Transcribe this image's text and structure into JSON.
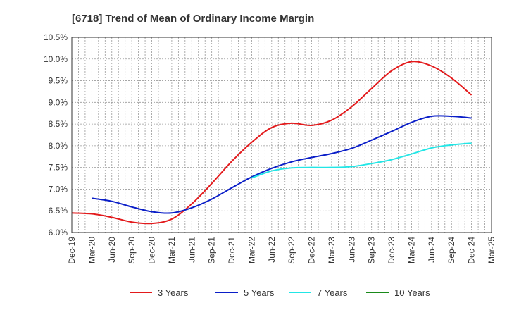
{
  "chart_data": {
    "type": "line",
    "title": "[6718]  Trend of Mean of Ordinary Income Margin",
    "xlabel": "",
    "ylabel": "",
    "x": [
      "Dec-19",
      "Mar-20",
      "Jun-20",
      "Sep-20",
      "Dec-20",
      "Mar-21",
      "Jun-21",
      "Sep-21",
      "Dec-21",
      "Mar-22",
      "Jun-22",
      "Sep-22",
      "Dec-22",
      "Mar-23",
      "Jun-23",
      "Sep-23",
      "Dec-23",
      "Mar-24",
      "Jun-24",
      "Sep-24",
      "Dec-24",
      "Mar-25"
    ],
    "yticks": [
      "6.0%",
      "6.5%",
      "7.0%",
      "7.5%",
      "8.0%",
      "8.5%",
      "9.0%",
      "9.5%",
      "10.0%",
      "10.5%"
    ],
    "ylim": [
      6.0,
      10.5
    ],
    "grid": true,
    "legend_position": "bottom",
    "series": [
      {
        "name": "3 Years",
        "color": "#e31a1c",
        "values": [
          6.45,
          6.43,
          6.35,
          6.24,
          6.21,
          6.31,
          6.66,
          7.13,
          7.64,
          8.08,
          8.42,
          8.52,
          8.47,
          8.59,
          8.9,
          9.32,
          9.73,
          9.94,
          9.84,
          9.56,
          9.17,
          null
        ]
      },
      {
        "name": "5 Years",
        "color": "#0a1ec8",
        "values": [
          null,
          6.79,
          6.72,
          6.59,
          6.48,
          6.45,
          6.57,
          6.77,
          7.03,
          7.28,
          7.48,
          7.63,
          7.73,
          7.82,
          7.94,
          8.13,
          8.33,
          8.54,
          8.68,
          8.68,
          8.64,
          null
        ]
      },
      {
        "name": "7 Years",
        "color": "#22e6e6",
        "values": [
          null,
          null,
          null,
          null,
          null,
          null,
          null,
          null,
          null,
          7.26,
          7.42,
          7.49,
          7.5,
          7.5,
          7.52,
          7.59,
          7.68,
          7.81,
          7.95,
          8.02,
          8.06,
          null
        ]
      },
      {
        "name": "10 Years",
        "color": "#1a8a1a",
        "values": [
          null,
          null,
          null,
          null,
          null,
          null,
          null,
          null,
          null,
          null,
          null,
          null,
          null,
          null,
          null,
          null,
          null,
          null,
          null,
          null,
          null,
          null
        ]
      }
    ]
  }
}
